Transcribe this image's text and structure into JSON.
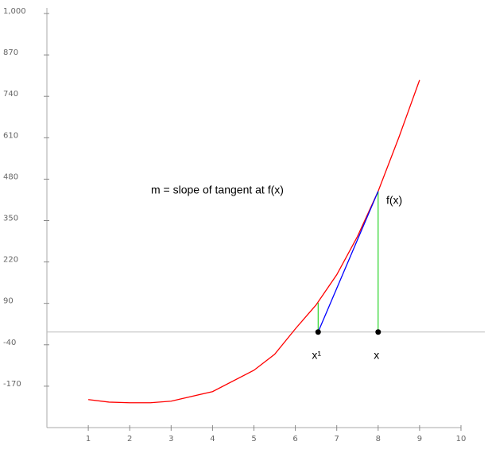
{
  "chart_data": {
    "type": "line",
    "x": [
      1,
      1.5,
      2,
      2.5,
      3,
      4,
      5,
      5.5,
      6,
      6.5,
      7,
      7.5,
      8,
      8.5,
      9
    ],
    "series": [
      {
        "color": "#ff0000",
        "values": [
          -212,
          -220,
          -222,
          -222,
          -217,
          -187,
          -120,
          -70,
          10,
          85,
          180,
          300,
          442,
          611,
          791
        ]
      }
    ],
    "xlim": [
      0,
      10
    ],
    "xticks": [
      1,
      2,
      3,
      4,
      5,
      6,
      7,
      8,
      9,
      10
    ],
    "ylim": [
      -300,
      1000
    ],
    "yticks": [
      {
        "value": 1000,
        "label": "1,000"
      },
      870,
      740,
      610,
      480,
      350,
      220,
      90,
      -40,
      -170
    ],
    "hline": 0,
    "annotation": "m = slope of tangent at f(x)",
    "tangent": {
      "color": "#0000ff",
      "x0": 6.55,
      "x1": 8,
      "y1": 442
    },
    "points": [
      {
        "x": 6.55,
        "fy": 92,
        "label": "x¹"
      },
      {
        "x": 8,
        "fy": 442,
        "label": "x"
      }
    ],
    "drop_color": "#00cc00",
    "fx_label": "f(x)"
  }
}
